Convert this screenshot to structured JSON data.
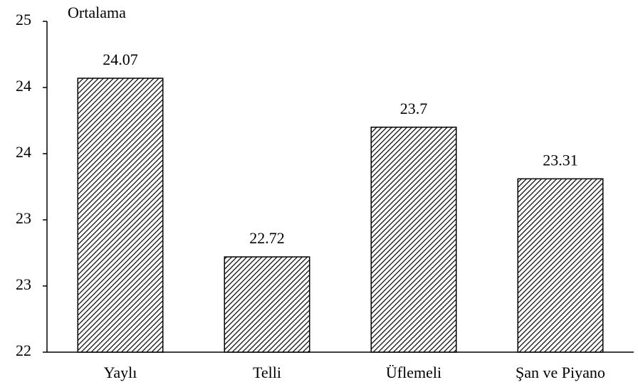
{
  "chart_data": {
    "type": "bar",
    "y_label": "Ortalama",
    "categories": [
      "Yaylı",
      "Telli",
      "Üflemeli",
      "Şan ve Piyano"
    ],
    "values": [
      24.07,
      22.72,
      23.7,
      23.31
    ],
    "color": "#000000",
    "ylim": [
      22,
      24.5
    ],
    "yticks": [
      22,
      {
        "value": 22.5,
        "label": "23"
      },
      23,
      {
        "value": 23.5,
        "label": "24"
      },
      24,
      {
        "value": 24.5,
        "label": "25"
      }
    ]
  }
}
